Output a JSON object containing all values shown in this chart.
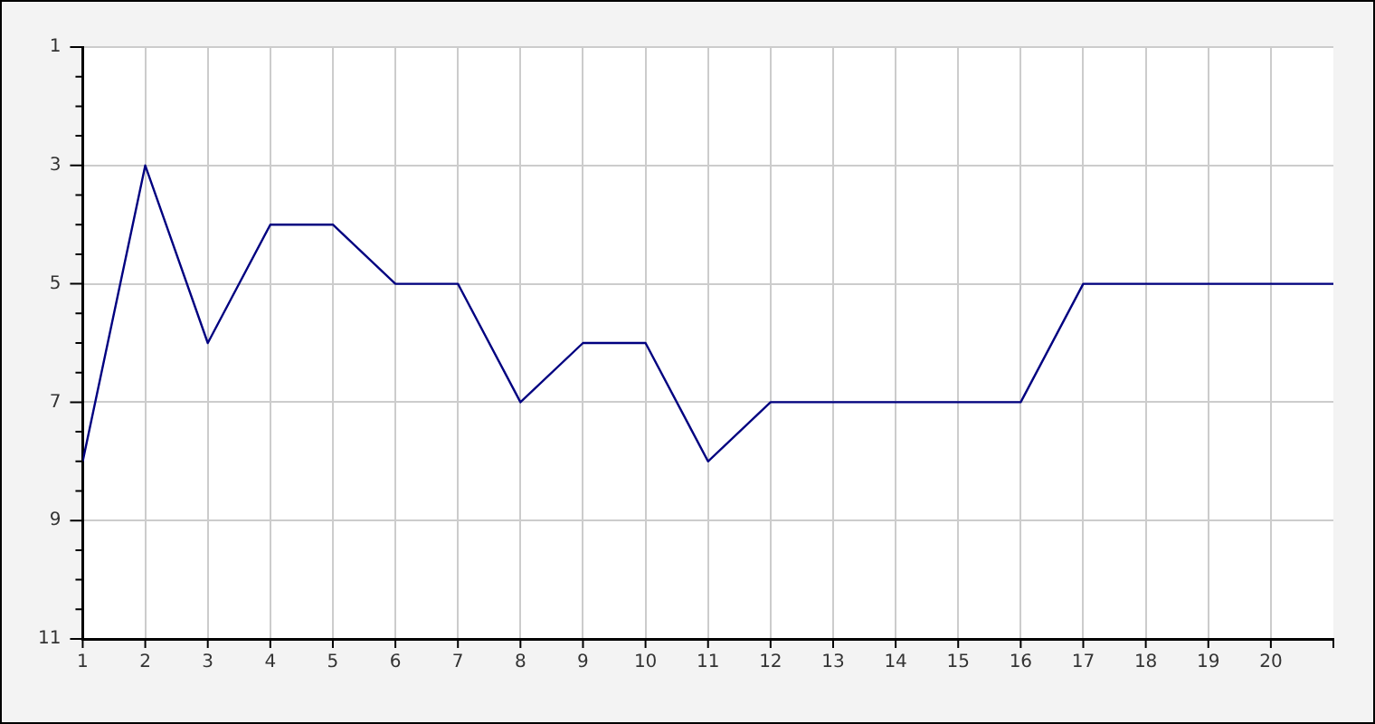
{
  "chart_data": {
    "type": "line",
    "x": [
      1,
      2,
      3,
      4,
      5,
      6,
      7,
      8,
      9,
      10,
      11,
      12,
      13,
      14,
      15,
      16,
      17,
      18,
      19,
      20,
      21
    ],
    "series": [
      {
        "color": "#000080",
        "values": [
          8,
          3,
          6,
          4,
          4,
          5,
          5,
          7,
          6,
          6,
          8,
          7,
          7,
          7,
          7,
          7,
          5,
          5,
          5,
          5,
          5
        ]
      }
    ],
    "xlim": [
      1,
      21
    ],
    "xticks": [
      1,
      2,
      3,
      4,
      5,
      6,
      7,
      8,
      9,
      10,
      11,
      12,
      13,
      14,
      15,
      16,
      17,
      18,
      19,
      20,
      {
        "value": 21,
        "label": null
      }
    ],
    "ylim": [
      11,
      1
    ],
    "yticks": [
      1,
      {
        "value": 1.5,
        "label": null
      },
      {
        "value": 2,
        "label": null
      },
      {
        "value": 2.5,
        "label": null
      },
      3,
      {
        "value": 3.5,
        "label": null
      },
      {
        "value": 4,
        "label": null
      },
      {
        "value": 4.5,
        "label": null
      },
      5,
      {
        "value": 5.5,
        "label": null
      },
      {
        "value": 6,
        "label": null
      },
      {
        "value": 6.5,
        "label": null
      },
      7,
      {
        "value": 7.5,
        "label": null
      },
      {
        "value": 8,
        "label": null
      },
      {
        "value": 8.5,
        "label": null
      },
      9,
      {
        "value": 9.5,
        "label": null
      },
      {
        "value": 10,
        "label": null
      },
      {
        "value": 10.5,
        "label": null
      },
      11
    ],
    "grid": true,
    "legend": false,
    "marker": "none",
    "line_style": "solid"
  }
}
